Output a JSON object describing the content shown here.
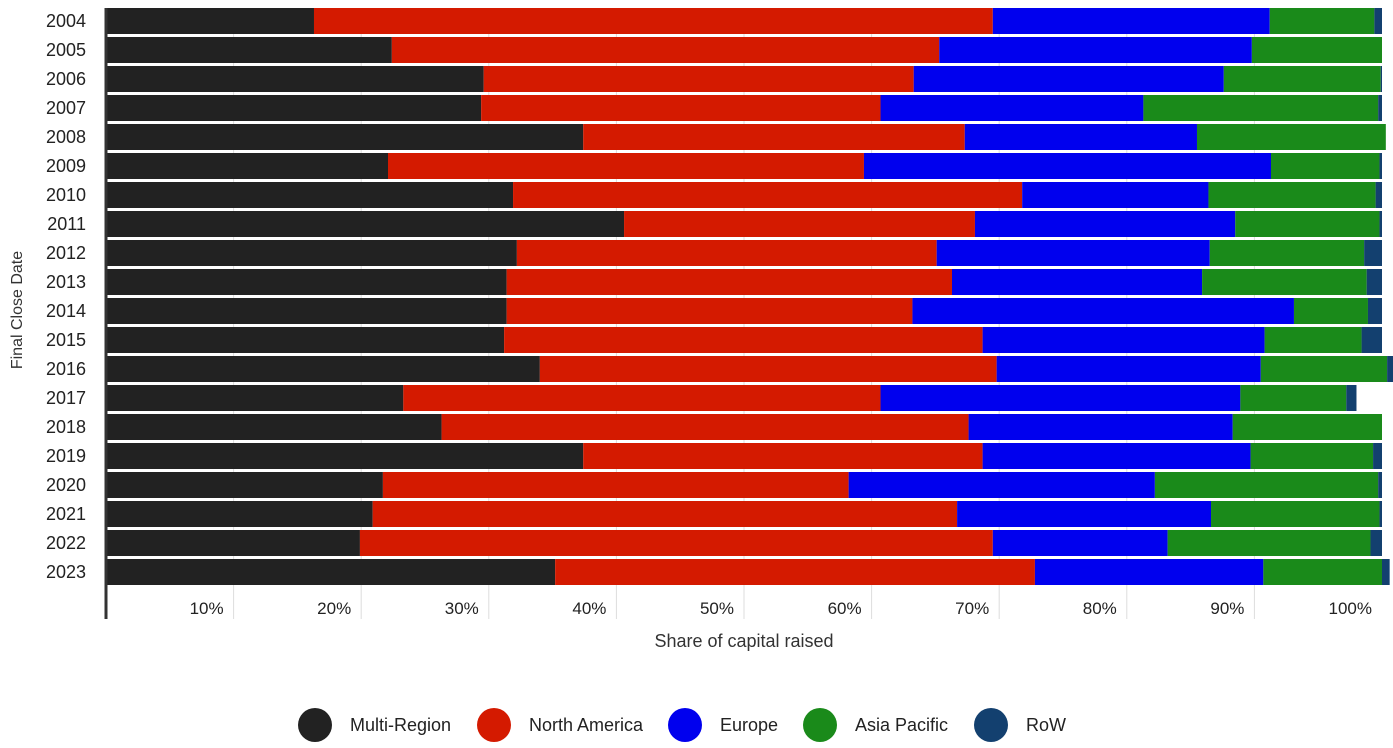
{
  "chart_data": {
    "type": "bar",
    "orientation": "horizontal",
    "stacked": true,
    "normalized": true,
    "xlabel": "Share of capital raised",
    "ylabel": "Final Close Date",
    "xlim": [
      0,
      100
    ],
    "x_ticks": [
      "10%",
      "20%",
      "30%",
      "40%",
      "50%",
      "60%",
      "70%",
      "80%",
      "90%",
      "100%"
    ],
    "grid": "vertical",
    "legend_position": "bottom-center",
    "categories": [
      "2004",
      "2005",
      "2006",
      "2007",
      "2008",
      "2009",
      "2010",
      "2011",
      "2012",
      "2013",
      "2014",
      "2015",
      "2016",
      "2017",
      "2018",
      "2019",
      "2020",
      "2021",
      "2022",
      "2023"
    ],
    "series": [
      {
        "name": "Multi-Region",
        "color": "#222222",
        "values": [
          16.3,
          22.4,
          29.6,
          29.4,
          37.4,
          22.1,
          31.9,
          40.6,
          32.2,
          31.4,
          31.4,
          31.2,
          34.0,
          23.3,
          26.3,
          37.4,
          21.7,
          20.9,
          19.9,
          35.2
        ]
      },
      {
        "name": "North America",
        "color": "#d41a00",
        "values": [
          53.2,
          42.9,
          33.7,
          31.3,
          29.9,
          37.3,
          39.9,
          27.5,
          32.9,
          34.9,
          31.8,
          37.5,
          35.8,
          37.4,
          41.3,
          31.3,
          36.5,
          45.8,
          49.6,
          37.6
        ]
      },
      {
        "name": "Europe",
        "color": "#0000ee",
        "values": [
          21.7,
          24.5,
          24.3,
          20.6,
          18.2,
          31.9,
          14.6,
          20.4,
          21.4,
          19.6,
          29.9,
          22.1,
          20.7,
          28.2,
          20.7,
          21.0,
          24.0,
          19.9,
          13.7,
          17.9
        ]
      },
      {
        "name": "Asia Pacific",
        "color": "#1a8a1a",
        "values": [
          8.2,
          10.2,
          12.3,
          18.4,
          14.8,
          8.5,
          13.1,
          11.3,
          12.1,
          12.9,
          5.8,
          7.6,
          9.9,
          8.3,
          11.7,
          9.6,
          17.5,
          13.2,
          15.9,
          9.3
        ]
      },
      {
        "name": "RoW",
        "color": "#13406f",
        "values": [
          0.6,
          0.0,
          0.1,
          0.3,
          0.0,
          0.2,
          0.5,
          0.2,
          1.4,
          1.2,
          1.1,
          1.6,
          0.6,
          0.8,
          0.0,
          0.7,
          0.3,
          0.2,
          0.9,
          0.6
        ]
      }
    ]
  }
}
